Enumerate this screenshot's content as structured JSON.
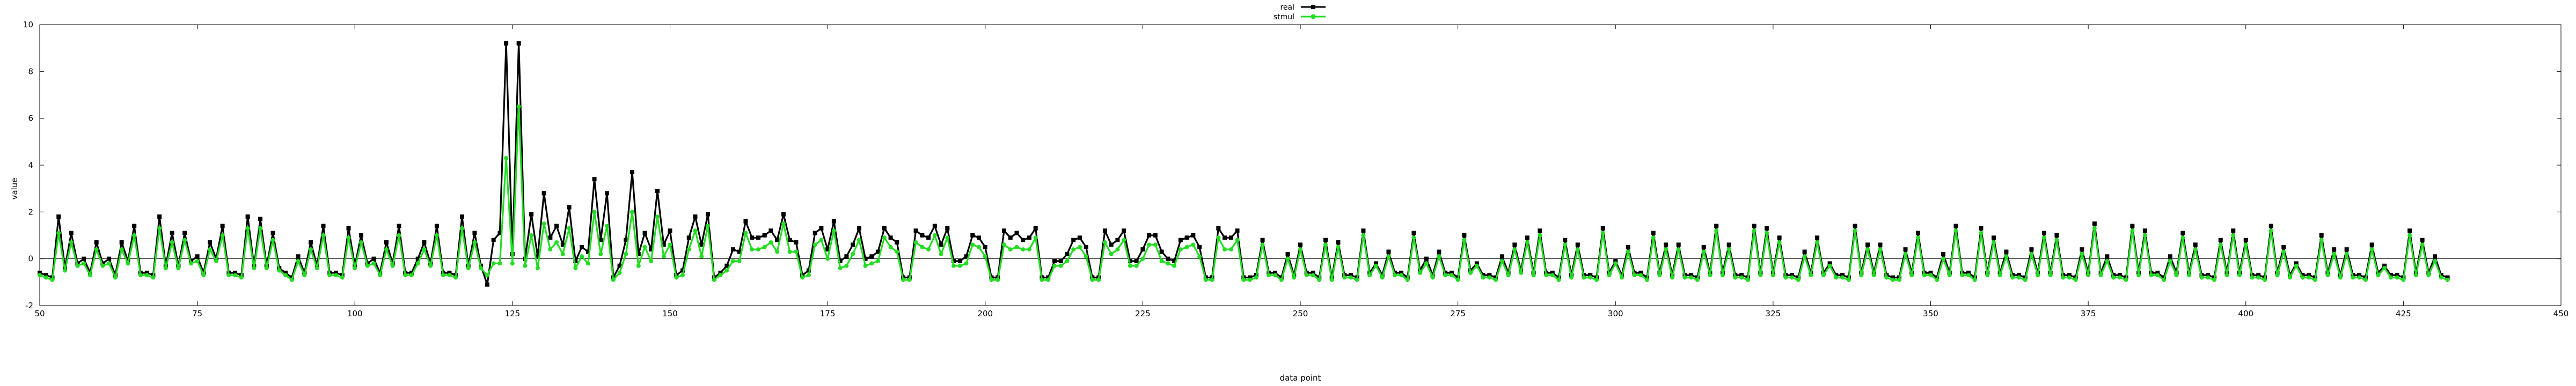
{
  "chart_data": {
    "type": "line",
    "title": "",
    "xlabel": "data point",
    "ylabel": "value",
    "xlim": [
      50,
      450
    ],
    "ylim": [
      -2,
      10
    ],
    "x_ticks": [
      50,
      75,
      100,
      125,
      150,
      175,
      200,
      225,
      250,
      275,
      300,
      325,
      350,
      375,
      400,
      425,
      450
    ],
    "y_ticks": [
      -2,
      0,
      2,
      4,
      6,
      8,
      10
    ],
    "grid": false,
    "zero_line": true,
    "legend_position": "top-center",
    "x_start": 50,
    "series": [
      {
        "name": "real",
        "color": "#000000",
        "marker": "filled-square",
        "values": [
          -0.6,
          -0.7,
          -0.8,
          1.8,
          -0.4,
          1.1,
          -0.2,
          0.0,
          -0.6,
          0.7,
          -0.2,
          0.0,
          -0.7,
          0.7,
          -0.1,
          1.4,
          -0.6,
          -0.6,
          -0.7,
          1.8,
          -0.3,
          1.1,
          -0.3,
          1.1,
          -0.1,
          0.1,
          -0.6,
          0.7,
          0.0,
          1.4,
          -0.6,
          -0.6,
          -0.7,
          1.8,
          -0.3,
          1.7,
          -0.3,
          1.1,
          -0.4,
          -0.6,
          -0.8,
          0.1,
          -0.6,
          0.7,
          -0.3,
          1.4,
          -0.6,
          -0.6,
          -0.7,
          1.3,
          -0.3,
          1.0,
          -0.2,
          0.0,
          -0.6,
          0.7,
          -0.2,
          1.4,
          -0.6,
          -0.6,
          0.0,
          0.7,
          -0.2,
          1.4,
          -0.6,
          -0.6,
          -0.7,
          1.8,
          -0.3,
          1.1,
          -0.3,
          -1.1,
          0.8,
          1.1,
          9.2,
          0.2,
          9.2,
          0.0,
          1.9,
          0.1,
          2.8,
          0.9,
          1.4,
          0.6,
          2.2,
          -0.1,
          0.5,
          0.3,
          3.4,
          0.8,
          2.8,
          -0.8,
          -0.3,
          0.8,
          3.7,
          0.2,
          1.1,
          0.4,
          2.9,
          0.6,
          1.2,
          -0.7,
          -0.5,
          0.9,
          1.8,
          0.6,
          1.9,
          -0.8,
          -0.6,
          -0.3,
          0.4,
          0.3,
          1.6,
          0.9,
          0.9,
          1.0,
          1.2,
          0.8,
          1.9,
          0.8,
          0.7,
          -0.7,
          -0.5,
          1.1,
          1.3,
          0.4,
          1.6,
          -0.1,
          0.1,
          0.6,
          1.3,
          0.0,
          0.1,
          0.3,
          1.3,
          0.9,
          0.7,
          -0.8,
          -0.8,
          1.2,
          1.0,
          0.9,
          1.4,
          0.6,
          1.3,
          -0.1,
          -0.1,
          0.1,
          1.0,
          0.9,
          0.5,
          -0.8,
          -0.8,
          1.2,
          0.9,
          1.1,
          0.8,
          0.9,
          1.3,
          -0.8,
          -0.8,
          -0.1,
          -0.1,
          0.2,
          0.8,
          0.9,
          0.5,
          -0.8,
          -0.8,
          1.2,
          0.6,
          0.8,
          1.2,
          -0.1,
          -0.1,
          0.4,
          1.0,
          1.0,
          0.3,
          0.0,
          -0.1,
          0.8,
          0.9,
          1.0,
          0.5,
          -0.8,
          -0.8,
          1.3,
          0.9,
          0.9,
          1.2,
          -0.8,
          -0.8,
          -0.7,
          0.8,
          -0.6,
          -0.6,
          -0.8,
          0.2,
          -0.7,
          0.6,
          -0.6,
          -0.6,
          -0.8,
          0.8,
          -0.8,
          0.7,
          -0.7,
          -0.7,
          -0.8,
          1.2,
          -0.6,
          -0.2,
          -0.7,
          0.3,
          -0.6,
          -0.6,
          -0.8,
          1.1,
          -0.5,
          0.0,
          -0.7,
          0.3,
          -0.6,
          -0.6,
          -0.8,
          1.0,
          -0.5,
          -0.2,
          -0.7,
          -0.7,
          -0.8,
          0.1,
          -0.6,
          0.6,
          -0.5,
          0.9,
          -0.6,
          1.2,
          -0.6,
          -0.6,
          -0.8,
          0.8,
          -0.7,
          0.6,
          -0.7,
          -0.7,
          -0.8,
          1.3,
          -0.6,
          -0.1,
          -0.7,
          0.5,
          -0.6,
          -0.6,
          -0.8,
          1.1,
          -0.6,
          0.6,
          -0.7,
          0.6,
          -0.7,
          -0.7,
          -0.8,
          0.5,
          -0.6,
          1.4,
          -0.6,
          0.6,
          -0.7,
          -0.7,
          -0.8,
          1.4,
          -0.6,
          1.3,
          -0.6,
          0.9,
          -0.7,
          -0.7,
          -0.8,
          0.3,
          -0.6,
          0.9,
          -0.6,
          -0.2,
          -0.7,
          -0.7,
          -0.8,
          1.4,
          -0.6,
          0.6,
          -0.6,
          0.6,
          -0.7,
          -0.8,
          -0.8,
          0.4,
          -0.6,
          1.1,
          -0.6,
          -0.6,
          -0.8,
          0.2,
          -0.6,
          1.4,
          -0.6,
          -0.6,
          -0.8,
          1.3,
          -0.6,
          0.9,
          -0.6,
          0.3,
          -0.7,
          -0.7,
          -0.8,
          0.4,
          -0.6,
          1.1,
          -0.6,
          1.0,
          -0.7,
          -0.7,
          -0.8,
          0.4,
          -0.6,
          1.5,
          -0.6,
          0.1,
          -0.7,
          -0.7,
          -0.8,
          1.4,
          -0.6,
          1.2,
          -0.6,
          -0.6,
          -0.8,
          0.1,
          -0.6,
          1.1,
          -0.6,
          0.6,
          -0.7,
          -0.7,
          -0.8,
          0.8,
          -0.6,
          1.2,
          -0.6,
          0.8,
          -0.7,
          -0.7,
          -0.8,
          1.4,
          -0.6,
          0.5,
          -0.7,
          -0.2,
          -0.7,
          -0.7,
          -0.8,
          1.0,
          -0.6,
          0.4,
          -0.7,
          0.4,
          -0.7,
          -0.7,
          -0.8,
          0.6,
          -0.6,
          -0.3,
          -0.7,
          -0.7,
          -0.8,
          1.2,
          -0.6,
          0.8,
          -0.6,
          0.1,
          -0.7,
          -0.8
        ]
      },
      {
        "name": "stmul",
        "color": "#22dd22",
        "marker": "filled-circle",
        "values": [
          -0.7,
          -0.8,
          -0.9,
          1.1,
          -0.5,
          0.7,
          -0.3,
          -0.2,
          -0.7,
          0.4,
          -0.3,
          -0.2,
          -0.8,
          0.4,
          -0.2,
          1.0,
          -0.7,
          -0.7,
          -0.8,
          1.3,
          -0.4,
          0.7,
          -0.4,
          0.8,
          -0.2,
          -0.1,
          -0.7,
          0.4,
          -0.1,
          1.0,
          -0.7,
          -0.7,
          -0.8,
          1.3,
          -0.4,
          1.3,
          -0.4,
          0.8,
          -0.5,
          -0.7,
          -0.9,
          -0.1,
          -0.7,
          0.4,
          -0.4,
          1.0,
          -0.7,
          -0.7,
          -0.8,
          0.9,
          -0.4,
          0.7,
          -0.3,
          -0.2,
          -0.7,
          0.4,
          -0.3,
          1.0,
          -0.7,
          -0.7,
          -0.2,
          0.4,
          -0.3,
          1.0,
          -0.7,
          -0.7,
          -0.8,
          1.3,
          -0.4,
          0.7,
          -0.4,
          -0.7,
          -0.2,
          -0.2,
          4.3,
          -0.2,
          6.5,
          -0.3,
          1.0,
          -0.4,
          1.5,
          0.4,
          0.7,
          0.2,
          1.3,
          -0.4,
          0.1,
          -0.2,
          2.0,
          0.2,
          1.4,
          -0.9,
          -0.6,
          0.2,
          2.0,
          -0.3,
          0.5,
          -0.1,
          1.8,
          0.1,
          0.6,
          -0.8,
          -0.7,
          0.4,
          1.2,
          0.1,
          1.4,
          -0.9,
          -0.7,
          -0.5,
          -0.1,
          -0.1,
          1.1,
          0.4,
          0.4,
          0.5,
          0.7,
          0.3,
          1.5,
          0.3,
          0.3,
          -0.8,
          -0.7,
          0.6,
          0.8,
          0.0,
          1.2,
          -0.4,
          -0.3,
          0.2,
          0.8,
          -0.3,
          -0.2,
          -0.1,
          0.9,
          0.5,
          0.3,
          -0.9,
          -0.9,
          0.7,
          0.5,
          0.4,
          1.0,
          0.2,
          0.9,
          -0.3,
          -0.3,
          -0.2,
          0.6,
          0.5,
          0.1,
          -0.9,
          -0.9,
          0.6,
          0.4,
          0.5,
          0.4,
          0.4,
          0.9,
          -0.9,
          -0.9,
          -0.3,
          -0.3,
          -0.1,
          0.4,
          0.5,
          0.1,
          -0.9,
          -0.9,
          0.7,
          0.2,
          0.4,
          0.8,
          -0.3,
          -0.3,
          0.0,
          0.6,
          0.6,
          -0.1,
          -0.2,
          -0.3,
          0.4,
          0.5,
          0.6,
          0.1,
          -0.9,
          -0.9,
          0.9,
          0.4,
          0.4,
          0.8,
          -0.9,
          -0.9,
          -0.8,
          0.6,
          -0.7,
          -0.7,
          -0.9,
          0.0,
          -0.8,
          0.4,
          -0.7,
          -0.7,
          -0.9,
          0.6,
          -0.9,
          0.5,
          -0.8,
          -0.8,
          -0.9,
          1.0,
          -0.7,
          -0.3,
          -0.8,
          0.1,
          -0.7,
          -0.7,
          -0.9,
          0.9,
          -0.6,
          -0.2,
          -0.8,
          0.1,
          -0.7,
          -0.7,
          -0.9,
          0.8,
          -0.6,
          -0.3,
          -0.8,
          -0.8,
          -0.9,
          -0.1,
          -0.7,
          0.4,
          -0.6,
          0.7,
          -0.7,
          1.0,
          -0.7,
          -0.7,
          -0.9,
          0.6,
          -0.8,
          0.4,
          -0.8,
          -0.8,
          -0.9,
          1.1,
          -0.7,
          -0.2,
          -0.8,
          0.3,
          -0.7,
          -0.7,
          -0.9,
          0.9,
          -0.7,
          0.4,
          -0.8,
          0.4,
          -0.8,
          -0.8,
          -0.9,
          0.3,
          -0.7,
          1.2,
          -0.7,
          0.4,
          -0.8,
          -0.8,
          -0.9,
          1.2,
          -0.7,
          1.1,
          -0.7,
          0.7,
          -0.8,
          -0.8,
          -0.9,
          0.1,
          -0.7,
          0.7,
          -0.7,
          -0.3,
          -0.8,
          -0.8,
          -0.9,
          1.2,
          -0.7,
          0.4,
          -0.7,
          0.4,
          -0.8,
          -0.9,
          -0.9,
          0.2,
          -0.7,
          0.9,
          -0.7,
          -0.7,
          -0.9,
          0.0,
          -0.7,
          1.2,
          -0.7,
          -0.7,
          -0.9,
          1.1,
          -0.7,
          0.7,
          -0.7,
          0.1,
          -0.8,
          -0.8,
          -0.9,
          0.2,
          -0.7,
          0.9,
          -0.7,
          0.8,
          -0.8,
          -0.8,
          -0.9,
          0.2,
          -0.7,
          1.3,
          -0.7,
          -0.1,
          -0.8,
          -0.8,
          -0.9,
          1.2,
          -0.7,
          1.0,
          -0.7,
          -0.7,
          -0.9,
          -0.1,
          -0.7,
          0.9,
          -0.7,
          0.4,
          -0.8,
          -0.8,
          -0.9,
          0.6,
          -0.7,
          1.0,
          -0.7,
          0.6,
          -0.8,
          -0.8,
          -0.9,
          1.2,
          -0.7,
          0.3,
          -0.8,
          -0.3,
          -0.8,
          -0.8,
          -0.9,
          0.8,
          -0.7,
          0.2,
          -0.8,
          0.2,
          -0.8,
          -0.8,
          -0.9,
          0.4,
          -0.7,
          -0.4,
          -0.8,
          -0.8,
          -0.9,
          1.0,
          -0.7,
          0.6,
          -0.7,
          -0.1,
          -0.8,
          -0.9
        ]
      }
    ]
  }
}
